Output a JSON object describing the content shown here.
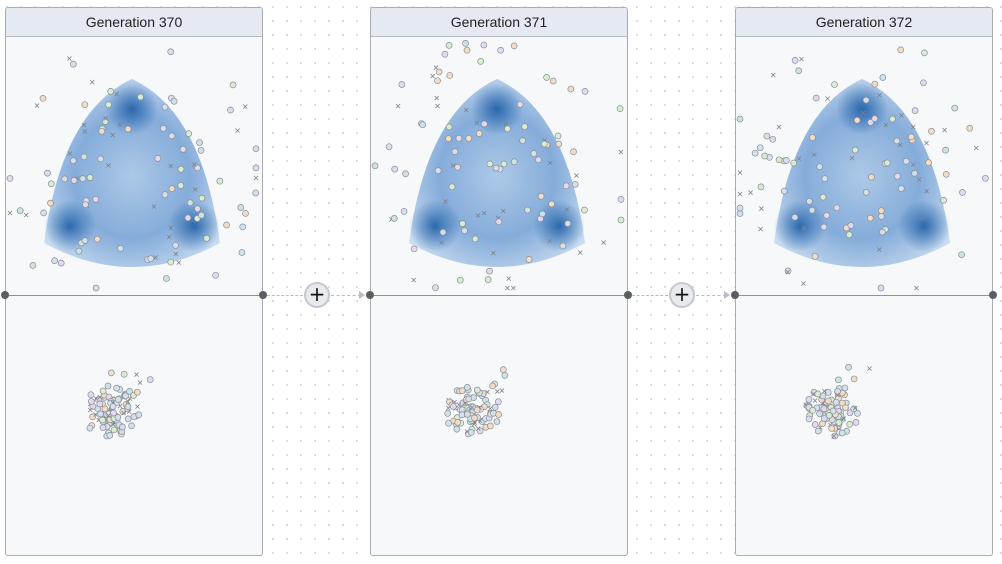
{
  "panels": [
    {
      "title": "Generation 370",
      "seed": 370
    },
    {
      "title": "Generation 371",
      "seed": 371
    },
    {
      "title": "Generation 372",
      "seed": 372
    }
  ],
  "connectors": [
    {
      "button_label": "+",
      "icon": "plus-icon"
    },
    {
      "button_label": "+",
      "icon": "plus-icon"
    }
  ],
  "colors": {
    "density": "#1f5fa8",
    "point_fills": [
      "#d8ecd0",
      "#d4dff0",
      "#f3dcc4",
      "#e4d8ee",
      "#cfe0e6"
    ],
    "point_stroke": "#8a8f96"
  }
}
